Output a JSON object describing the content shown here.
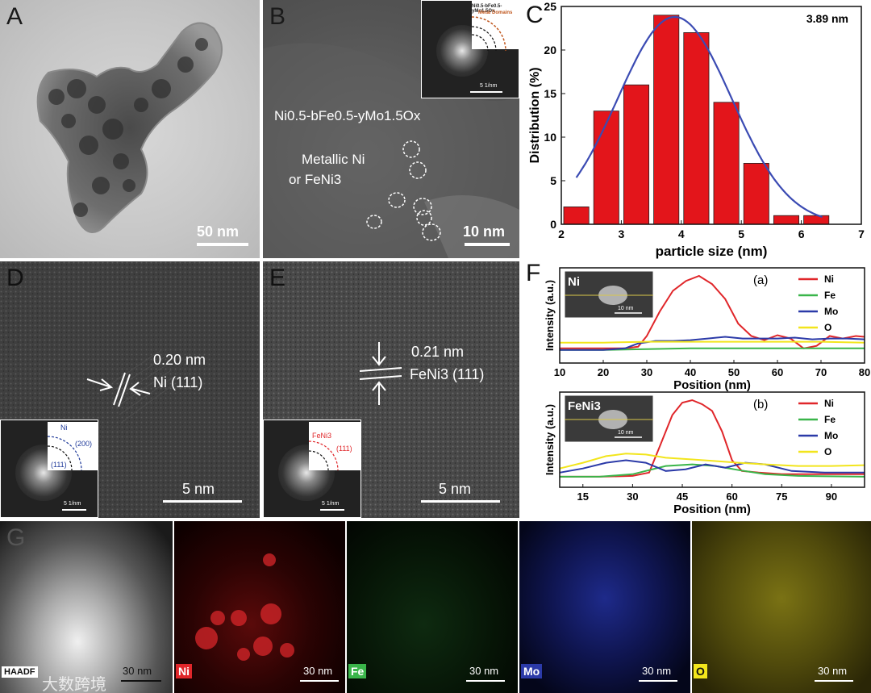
{
  "panels": {
    "A": {
      "letter": "A",
      "scale": "50 nm"
    },
    "B": {
      "letter": "B",
      "formula": "Ni0.5-bFe0.5-yMo1.5Ox",
      "metallic_line1": "Metallic Ni",
      "metallic_line2": "or FeNi3",
      "scale": "10 nm",
      "inset_formula": "Ni0.5-bFe0.5-yMo1.5Ox",
      "inset_domain": "Metal Domains",
      "inset_scale": "5 1/nm"
    },
    "C": {
      "letter": "C"
    },
    "D": {
      "letter": "D",
      "spacing": "0.20 nm",
      "plane": "Ni (111)",
      "scale": "5 nm",
      "inset_title": "Ni",
      "inset_ring1": "(200)",
      "inset_ring2": "(111)",
      "inset_scale": "5 1/nm"
    },
    "E": {
      "letter": "E",
      "spacing": "0.21 nm",
      "plane": "FeNi3 (111)",
      "scale": "5 nm",
      "inset_title": "FeNi3",
      "inset_ring1": "(111)",
      "inset_scale": "5 1/nm"
    },
    "F": {
      "letter": "F"
    },
    "G": {
      "letter": "G"
    }
  },
  "eds_maps": [
    {
      "label": "HAADF",
      "scale": "30 nm",
      "color": "#ffffff"
    },
    {
      "label": "Ni",
      "scale": "30 nm",
      "color": "#e0262a"
    },
    {
      "label": "Fe",
      "scale": "30 nm",
      "color": "#3ab54a"
    },
    {
      "label": "Mo",
      "scale": "30 nm",
      "color": "#2b3aa8"
    },
    {
      "label": "O",
      "scale": "30 nm",
      "color": "#f2e51c"
    }
  ],
  "watermark": "大数跨境",
  "chart_data": [
    {
      "type": "bar",
      "annotation": "3.89 nm",
      "xlabel": "particle size (nm)",
      "ylabel": "Distribution (%)",
      "xlim": [
        2,
        7
      ],
      "ylim": [
        0,
        25
      ],
      "xticks": [
        2,
        3,
        4,
        5,
        6,
        7
      ],
      "yticks": [
        0,
        5,
        10,
        15,
        20,
        25
      ],
      "bar_centers": [
        2.25,
        2.75,
        3.25,
        3.75,
        4.25,
        4.75,
        5.25,
        5.75,
        6.25
      ],
      "values": [
        2,
        13,
        16,
        24,
        22,
        14,
        7,
        1,
        1
      ],
      "fit_curve": {
        "type": "gaussian",
        "center": 3.89,
        "peak": 23.8,
        "sigma": 0.95
      },
      "colors": {
        "bars": "#e3151b",
        "fit": "#3b4bb3"
      }
    },
    {
      "type": "line",
      "subpanel": "(a)",
      "inset_label": "Ni",
      "inset_scale": "10 nm",
      "xlabel": "Position (nm)",
      "ylabel": "Intensity (a.u.)",
      "xlim": [
        10,
        80
      ],
      "xticks": [
        10,
        20,
        30,
        40,
        50,
        60,
        70,
        80
      ],
      "legend": [
        "Ni",
        "Fe",
        "Mo",
        "O"
      ],
      "series": [
        {
          "name": "Ni",
          "color": "#e0262a",
          "x": [
            10,
            20,
            25,
            28,
            30,
            33,
            36,
            39,
            42,
            45,
            48,
            51,
            54,
            57,
            60,
            63,
            66,
            69,
            72,
            75,
            78,
            80
          ],
          "y": [
            0.1,
            0.1,
            0.1,
            0.12,
            0.25,
            0.55,
            0.8,
            0.92,
            0.98,
            0.88,
            0.7,
            0.4,
            0.25,
            0.2,
            0.26,
            0.22,
            0.1,
            0.13,
            0.25,
            0.22,
            0.25,
            0.24
          ]
        },
        {
          "name": "Fe",
          "color": "#3ab54a",
          "x": [
            10,
            20,
            30,
            40,
            50,
            60,
            70,
            80
          ],
          "y": [
            0.08,
            0.08,
            0.09,
            0.1,
            0.1,
            0.1,
            0.1,
            0.1
          ]
        },
        {
          "name": "Mo",
          "color": "#2b3aa8",
          "x": [
            10,
            20,
            25,
            28,
            32,
            36,
            40,
            44,
            48,
            52,
            56,
            60,
            64,
            68,
            72,
            76,
            80
          ],
          "y": [
            0.08,
            0.08,
            0.1,
            0.16,
            0.19,
            0.19,
            0.2,
            0.22,
            0.24,
            0.22,
            0.22,
            0.22,
            0.23,
            0.21,
            0.22,
            0.22,
            0.21
          ]
        },
        {
          "name": "O",
          "color": "#f2e51c",
          "x": [
            10,
            20,
            30,
            40,
            50,
            60,
            70,
            80
          ],
          "y": [
            0.17,
            0.17,
            0.18,
            0.18,
            0.18,
            0.18,
            0.18,
            0.17
          ]
        }
      ]
    },
    {
      "type": "line",
      "subpanel": "(b)",
      "inset_label": "FeNi3",
      "inset_scale": "10 nm",
      "xlabel": "Position (nm)",
      "ylabel": "Intensity (a.u.)",
      "xlim": [
        8,
        100
      ],
      "xticks": [
        15,
        30,
        45,
        60,
        75,
        90
      ],
      "legend": [
        "Ni",
        "Fe",
        "Mo",
        "O"
      ],
      "series": [
        {
          "name": "Ni",
          "color": "#e0262a",
          "x": [
            8,
            20,
            30,
            35,
            38,
            42,
            45,
            48,
            51,
            54,
            57,
            60,
            63,
            68,
            75,
            85,
            100
          ],
          "y": [
            0.05,
            0.05,
            0.06,
            0.1,
            0.4,
            0.8,
            0.95,
            0.98,
            0.93,
            0.85,
            0.6,
            0.25,
            0.12,
            0.1,
            0.08,
            0.08,
            0.08
          ]
        },
        {
          "name": "Fe",
          "color": "#3ab54a",
          "x": [
            8,
            20,
            30,
            40,
            48,
            55,
            62,
            70,
            80,
            100
          ],
          "y": [
            0.05,
            0.05,
            0.08,
            0.18,
            0.2,
            0.18,
            0.13,
            0.08,
            0.06,
            0.05
          ]
        },
        {
          "name": "Mo",
          "color": "#2b3aa8",
          "x": [
            8,
            15,
            22,
            28,
            34,
            40,
            46,
            52,
            58,
            64,
            70,
            78,
            88,
            100
          ],
          "y": [
            0.1,
            0.15,
            0.22,
            0.25,
            0.22,
            0.12,
            0.14,
            0.2,
            0.16,
            0.22,
            0.2,
            0.12,
            0.1,
            0.1
          ]
        },
        {
          "name": "O",
          "color": "#f2e51c",
          "x": [
            8,
            15,
            22,
            28,
            34,
            40,
            48,
            55,
            62,
            70,
            80,
            90,
            100
          ],
          "y": [
            0.15,
            0.22,
            0.3,
            0.33,
            0.32,
            0.28,
            0.26,
            0.24,
            0.22,
            0.2,
            0.18,
            0.18,
            0.19
          ]
        }
      ]
    }
  ]
}
